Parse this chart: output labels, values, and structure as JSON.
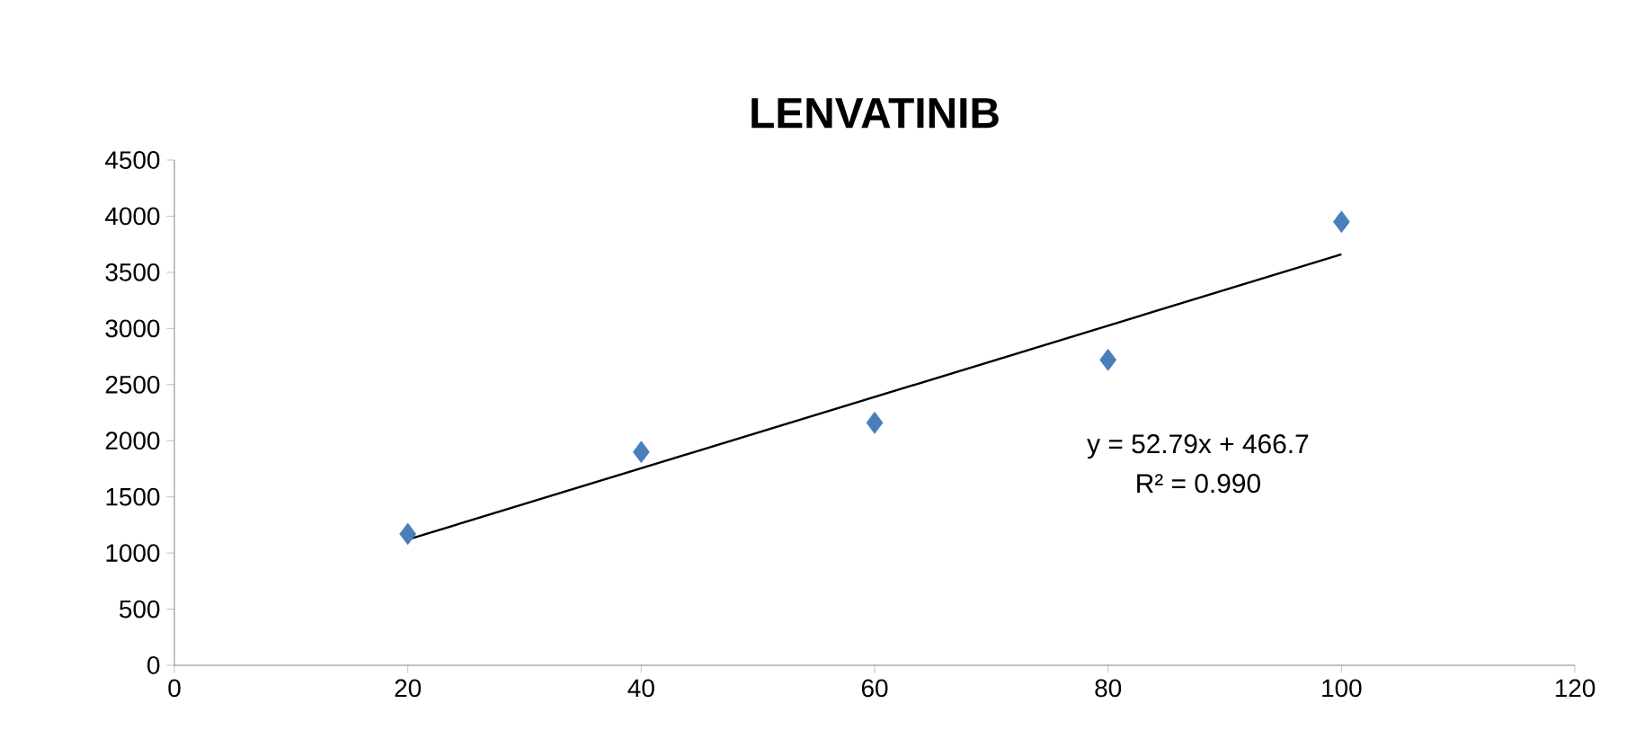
{
  "chart_data": {
    "type": "scatter",
    "title": "LENVATINIB",
    "series": [
      {
        "color": "#4a7ebb",
        "marker": "diamond",
        "x": [
          20,
          40,
          60,
          80,
          100
        ],
        "values": [
          1170,
          1900,
          2160,
          2720,
          3950
        ]
      },
      {
        "type": "line",
        "color": "#000000",
        "marker": "none",
        "x": [
          20,
          100
        ],
        "values": [
          1120,
          3660
        ]
      }
    ],
    "xlim": [
      0,
      120
    ],
    "xticks": [
      0,
      20,
      40,
      60,
      80,
      100,
      120
    ],
    "ylim": [
      0,
      4500
    ],
    "yticks": [
      0,
      500,
      1000,
      1500,
      2000,
      2500,
      3000,
      3500,
      4000,
      4500
    ],
    "annotations": [
      "y = 52.79x + 466.7",
      "R² = 0.990"
    ],
    "grid": false
  }
}
